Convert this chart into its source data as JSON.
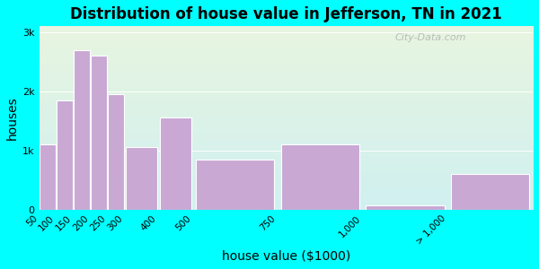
{
  "title": "Distribution of house value in Jefferson, TN in 2021",
  "xlabel": "house value ($1000)",
  "ylabel": "houses",
  "bar_labels": [
    "50",
    "100",
    "150",
    "200",
    "250",
    "300",
    "400",
    "500",
    "750",
    "1,000",
    "> 1,000"
  ],
  "bar_values": [
    1100,
    1850,
    2700,
    2600,
    1950,
    1050,
    1550,
    850,
    1100,
    75,
    600
  ],
  "bin_lefts": [
    50,
    100,
    150,
    200,
    250,
    300,
    400,
    500,
    750,
    1000,
    1250
  ],
  "bin_widths": [
    50,
    50,
    50,
    50,
    50,
    100,
    100,
    250,
    250,
    250,
    250
  ],
  "tick_positions": [
    50,
    100,
    150,
    200,
    250,
    300,
    400,
    500,
    750,
    1000,
    1250
  ],
  "tick_labels": [
    "50",
    "100",
    "150",
    "200",
    "250",
    "300",
    "400",
    "500",
    "750",
    "1,000",
    "> 1,000"
  ],
  "bar_color": "#c9a8d4",
  "bar_edge_color": "#ffffff",
  "yticks": [
    0,
    1000,
    2000,
    3000
  ],
  "ytick_labels": [
    "0",
    "1k",
    "2k",
    "3k"
  ],
  "ylim": [
    0,
    3100
  ],
  "xlim": [
    50,
    1500
  ],
  "bg_outer": "#00ffff",
  "bg_plot_top": "#e8f5e0",
  "bg_plot_bottom": "#d0f0f0",
  "title_fontsize": 12,
  "axis_label_fontsize": 10,
  "watermark_text": "City-Data.com"
}
